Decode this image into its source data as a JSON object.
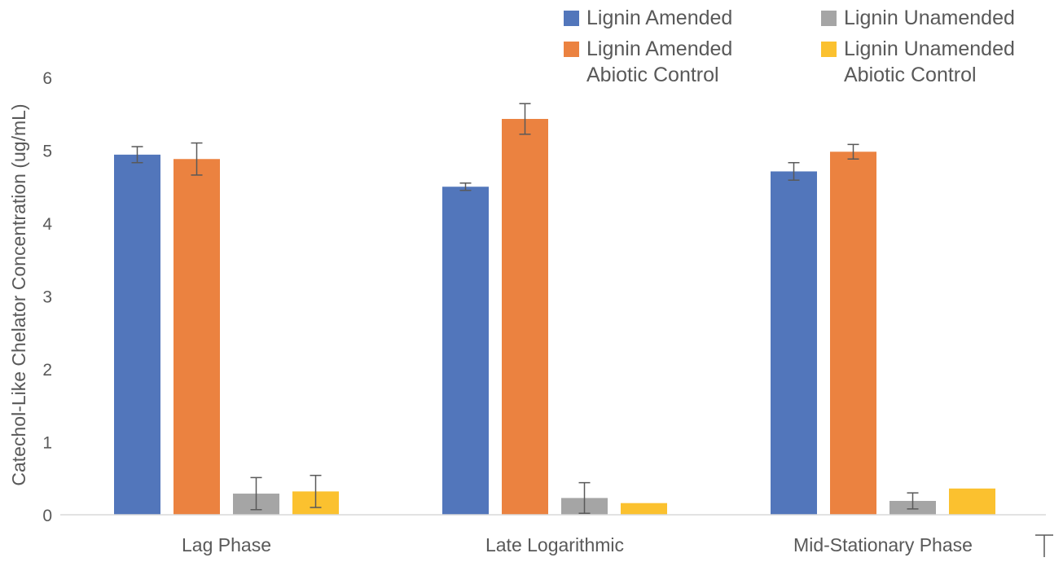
{
  "chart_data": {
    "type": "bar",
    "title": "",
    "xlabel": "",
    "ylabel": "Catechol-Like Chelator Concentration (ug/mL)",
    "ylim": [
      0,
      6
    ],
    "yticks": [
      "0",
      "1",
      "2",
      "3",
      "4",
      "5",
      "6"
    ],
    "grid": false,
    "legend_position": "top-right",
    "categories": [
      "Lag Phase",
      "Late Logarithmic",
      "Mid-Stationary Phase"
    ],
    "series": [
      {
        "name": "Lignin Amended",
        "color": "#5276BB",
        "values": [
          4.94,
          4.5,
          4.71
        ],
        "errors": [
          0.11,
          0.05,
          0.12
        ]
      },
      {
        "name": "Lignin Amended\nAbiotic Control",
        "color": "#EB8240",
        "values": [
          4.88,
          5.43,
          4.98
        ],
        "errors": [
          0.22,
          0.21,
          0.1
        ]
      },
      {
        "name": "Lignin Unamended",
        "color": "#A5A5A5",
        "values": [
          0.29,
          0.23,
          0.19
        ],
        "errors": [
          0.22,
          0.21,
          0.11
        ]
      },
      {
        "name": "Lignin Unamended\nAbiotic Control",
        "color": "#FBC12F",
        "values": [
          0.32,
          0.16,
          0.36
        ],
        "errors": [
          0.22,
          null,
          null
        ]
      }
    ]
  }
}
